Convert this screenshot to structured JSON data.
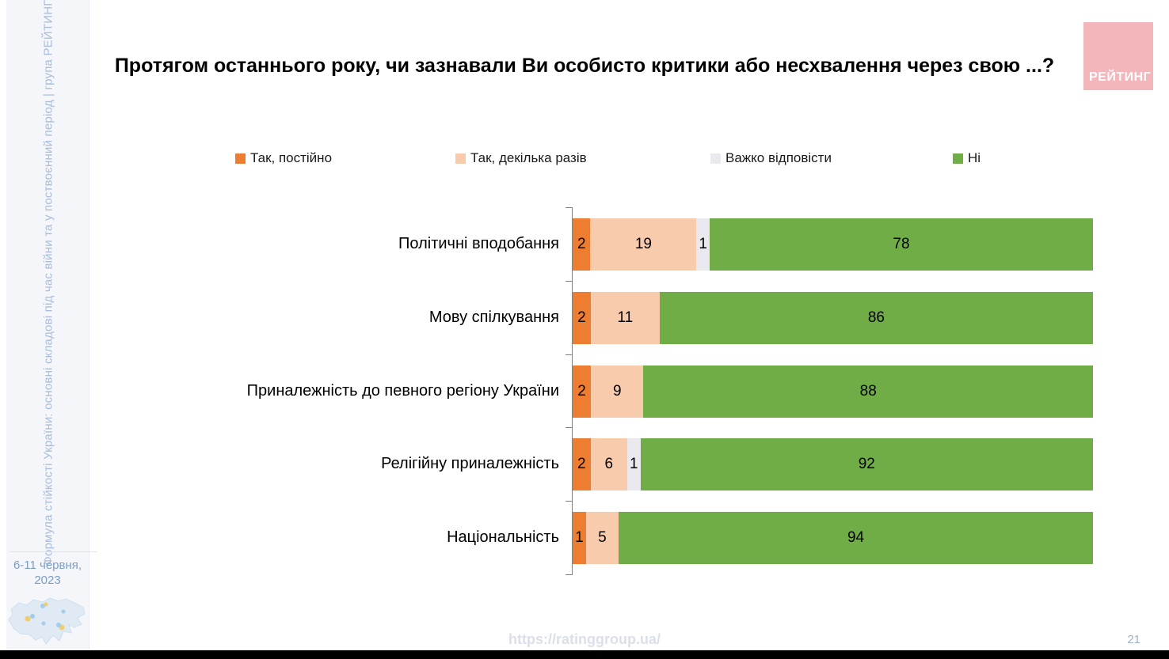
{
  "slide": {
    "title": "Протягом останнього року, чи зазнавали Ви особисто критики або несхвалення через свою ...?",
    "sidebar_text": "Формула стійкості України: основні складові під час війни та у поствоєнний період | група РЕЙТИНГ",
    "survey_date_line1": "6-11 червня,",
    "survey_date_line2": "2023",
    "logo_text": "РЕЙТИНГ",
    "footer_url": "https://ratinggroup.ua/",
    "page_number": "21"
  },
  "colors": {
    "yes_constantly": "#ed7d31",
    "yes_several": "#f8cbad",
    "hard_to_say": "#e9e9ef",
    "no": "#70ad47",
    "logo_pink": "#f3b6ba",
    "sidebar_text_blue": "#a9bdd9",
    "date_blue": "#7d9dc6"
  },
  "chart_data": {
    "type": "bar",
    "orientation": "horizontal-stacked",
    "title": "Протягом останнього року, чи зазнавали Ви особисто критики або несхвалення через свою ...?",
    "xlim": [
      0,
      100
    ],
    "legend_position": "top",
    "value_labels": "inside",
    "grid": false,
    "categories": [
      "Політичні вподобання",
      "Мову спілкування",
      "Приналежність до певного регіону України",
      "Релігійну приналежність",
      "Національність"
    ],
    "series": [
      {
        "name": "Так, постійно",
        "color": "#ed7d31",
        "values": [
          2,
          2,
          2,
          2,
          1
        ]
      },
      {
        "name": "Так, декілька разів",
        "color": "#f8cbad",
        "values": [
          19,
          11,
          9,
          6,
          5
        ]
      },
      {
        "name": "Важко відповісти",
        "color": "#e9e9ef",
        "values": [
          1,
          0,
          0,
          1,
          0
        ]
      },
      {
        "name": "Ні",
        "color": "#70ad47",
        "values": [
          78,
          86,
          88,
          92,
          94
        ]
      }
    ]
  }
}
